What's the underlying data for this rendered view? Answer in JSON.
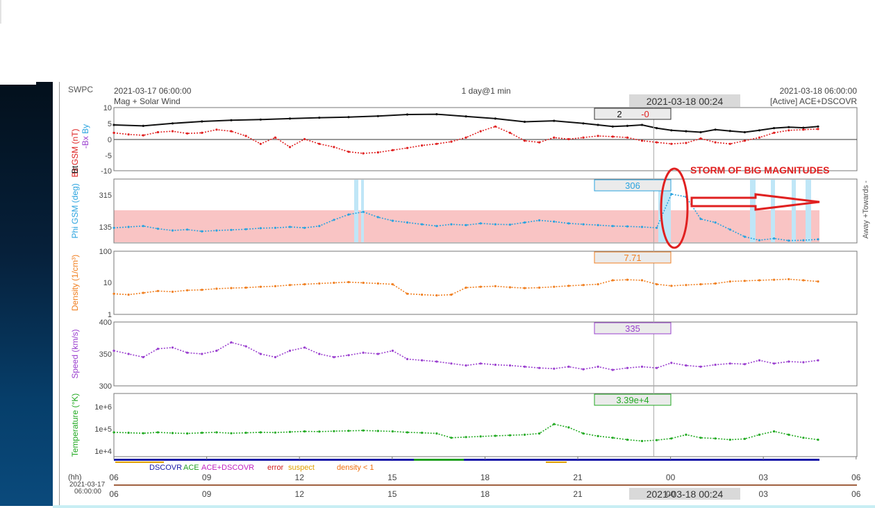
{
  "header": {
    "source": "SWPC",
    "start_time": "2021-03-17 06:00:00",
    "subtitle": "Mag + Solar Wind",
    "span": "1 day@1 min",
    "cursor_time": "2021-03-18 00:24",
    "end_time": "2021-03-18 06:00:00",
    "active_source": "[Active] ACE+DSCOVR"
  },
  "annotation": {
    "text": "STORM OF BIG MAGNITUDES",
    "color": "#e02020"
  },
  "footer": {
    "hh_label": "(hh)",
    "start_date": "2021-03-17",
    "start_clock": "06:00:00",
    "cursor_time": "2021-03-18 00:24",
    "legend": [
      {
        "label": "DSCOVR",
        "color": "#1a1aa8"
      },
      {
        "label": "ACE",
        "color": "#22a022"
      },
      {
        "label": "ACE+DSCOVR",
        "color": "#c020c0"
      },
      {
        "label": "error",
        "color": "#d02020"
      },
      {
        "label": "suspect",
        "color": "#e0a000"
      },
      {
        "label": "density < 1",
        "color": "#f07010"
      }
    ]
  },
  "chart_data": {
    "type": "scatter",
    "x_axis": {
      "start": "2021-03-17 06:00",
      "end": "2021-03-18 06:00",
      "tick_labels": [
        "06",
        "09",
        "12",
        "15",
        "18",
        "21",
        "00",
        "03",
        "06"
      ],
      "cursor": "2021-03-18 00:24"
    },
    "panels": [
      {
        "id": "mag",
        "ylabel_parts": [
          {
            "text": "Bz GSM (nT)",
            "color": "#dd2020"
          },
          {
            "text": "Bt",
            "color": "#111111"
          },
          {
            "text": "-Bx",
            "color": "#9a3fcf"
          },
          {
            "text": "By",
            "color": "#29a3df"
          }
        ],
        "ylim": [
          -10,
          10
        ],
        "yticks": [
          "10",
          "5",
          "0",
          "-5",
          "-10"
        ],
        "readout": [
          {
            "text": "2",
            "color": "#111111"
          },
          {
            "text": "-0",
            "color": "#e02020"
          }
        ],
        "series": [
          {
            "name": "Bt",
            "color": "#111111",
            "x_hours": [
              0,
              1,
              2,
              3,
              4,
              5,
              6,
              7,
              8,
              9,
              10,
              11,
              12,
              13,
              14,
              15,
              16,
              16.5,
              17,
              17.5,
              18,
              18.5,
              19,
              19.5,
              20,
              20.5,
              21,
              21.5,
              22,
              22.5,
              23,
              23.5,
              24
            ],
            "values": [
              4.5,
              4.2,
              5.0,
              5.6,
              6.0,
              6.2,
              6.5,
              6.8,
              7.0,
              7.3,
              7.8,
              7.9,
              7.2,
              6.5,
              5.5,
              5.8,
              5.0,
              4.5,
              4.0,
              4.2,
              4.5,
              3.5,
              2.8,
              2.5,
              2.2,
              3.0,
              2.6,
              2.2,
              2.8,
              3.5,
              3.8,
              3.6,
              4.0
            ]
          },
          {
            "name": "Bz",
            "color": "#e02020",
            "x_hours": [
              0,
              0.5,
              1,
              1.5,
              2,
              2.5,
              3,
              3.5,
              4,
              4.5,
              5,
              5.5,
              6,
              6.5,
              7,
              7.5,
              8,
              8.5,
              9,
              9.5,
              10,
              10.5,
              11,
              11.5,
              12,
              12.5,
              13,
              13.5,
              14,
              14.5,
              15,
              15.5,
              16,
              16.5,
              17,
              17.5,
              18,
              18.5,
              19,
              19.5,
              20,
              20.5,
              21,
              21.5,
              22,
              22.5,
              23,
              23.5,
              24
            ],
            "values": [
              2,
              1.5,
              1.2,
              2.2,
              2.5,
              1.8,
              2.0,
              3.0,
              2.5,
              1.0,
              -1.5,
              0.5,
              -2.5,
              0.0,
              -1.5,
              -2.5,
              -4.0,
              -4.5,
              -4.2,
              -3.5,
              -2.8,
              -2.0,
              -1.5,
              -0.8,
              0.5,
              2.5,
              4.0,
              2.0,
              -0.5,
              -1.0,
              0.5,
              0.0,
              0.5,
              1.0,
              0.8,
              0.5,
              -0.5,
              -1.0,
              -1.5,
              -1.2,
              0.2,
              -1.0,
              -1.5,
              -0.5,
              0.5,
              2.0,
              2.8,
              3.0,
              3.2
            ]
          }
        ]
      },
      {
        "id": "phi",
        "ylabel": "Phi GSM (deg)",
        "ylabel_color": "#29a3df",
        "right_label": "Away +Towards -",
        "ylim": [
          45,
          405
        ],
        "yticks": [
          "315",
          "135"
        ],
        "readout": [
          {
            "text": "306",
            "color": "#29a3df"
          }
        ],
        "series": [
          {
            "name": "Phi",
            "color": "#29a3df",
            "x_hours": [
              0,
              0.5,
              1,
              1.5,
              2,
              2.5,
              3,
              3.5,
              4,
              4.5,
              5,
              5.5,
              6,
              6.5,
              7,
              7.5,
              8,
              8.5,
              9,
              9.5,
              10,
              10.5,
              11,
              11.5,
              12,
              12.5,
              13,
              13.5,
              14,
              14.5,
              15,
              15.5,
              16,
              16.5,
              17,
              17.5,
              18,
              18.5,
              19,
              19.5,
              20,
              20.5,
              21,
              21.5,
              22,
              22.5,
              23,
              23.5,
              24
            ],
            "values": [
              130,
              135,
              140,
              125,
              115,
              120,
              110,
              115,
              118,
              122,
              128,
              130,
              135,
              130,
              140,
              175,
              205,
              220,
              190,
              170,
              160,
              150,
              140,
              150,
              145,
              155,
              150,
              148,
              160,
              172,
              165,
              155,
              150,
              145,
              140,
              138,
              135,
              130,
              320,
              305,
              180,
              160,
              120,
              80,
              60,
              70,
              58,
              60,
              65
            ]
          }
        ]
      },
      {
        "id": "density",
        "ylabel": "Density (1/cm³)",
        "ylabel_color": "#f07f20",
        "ylim": [
          1,
          100
        ],
        "yscale": "log",
        "yticks": [
          "100",
          "10",
          "1"
        ],
        "readout": [
          {
            "text": "7.71",
            "color": "#f07f20"
          }
        ],
        "series": [
          {
            "name": "Density",
            "color": "#f07f20",
            "x_hours": [
              0,
              0.5,
              1,
              1.5,
              2,
              2.5,
              3,
              3.5,
              4,
              4.5,
              5,
              5.5,
              6,
              6.5,
              7,
              7.5,
              8,
              8.5,
              9,
              9.5,
              10,
              10.5,
              11,
              11.5,
              12,
              12.5,
              13,
              13.5,
              14,
              14.5,
              15,
              15.5,
              16,
              16.5,
              17,
              17.5,
              18,
              18.5,
              19,
              19.5,
              20,
              20.5,
              21,
              21.5,
              22,
              22.5,
              23,
              23.5,
              24
            ],
            "values": [
              4.5,
              4.2,
              4.8,
              5.5,
              5.2,
              5.8,
              6.0,
              6.5,
              6.8,
              7.0,
              7.5,
              7.8,
              8.5,
              9.0,
              9.5,
              10,
              10.5,
              10,
              9.5,
              9.0,
              4.5,
              4.2,
              4.0,
              4.2,
              7.0,
              7.5,
              7.8,
              7.2,
              6.8,
              7.0,
              7.5,
              8.0,
              8.5,
              9.0,
              12,
              12.5,
              12,
              9.0,
              8.0,
              8.5,
              9.0,
              9.5,
              11,
              11.5,
              12,
              12.5,
              13,
              12,
              11
            ]
          }
        ]
      },
      {
        "id": "speed",
        "ylabel": "Speed (km/s)",
        "ylabel_color": "#9a3fcf",
        "ylim": [
          300,
          400
        ],
        "yticks": [
          "400",
          "350",
          "300"
        ],
        "readout": [
          {
            "text": "335",
            "color": "#9a3fcf"
          }
        ],
        "series": [
          {
            "name": "Speed",
            "color": "#9a3fcf",
            "x_hours": [
              0,
              0.5,
              1,
              1.5,
              2,
              2.5,
              3,
              3.5,
              4,
              4.5,
              5,
              5.5,
              6,
              6.5,
              7,
              7.5,
              8,
              8.5,
              9,
              9.5,
              10,
              10.5,
              11,
              11.5,
              12,
              12.5,
              13,
              13.5,
              14,
              14.5,
              15,
              15.5,
              16,
              16.5,
              17,
              17.5,
              18,
              18.5,
              19,
              19.5,
              20,
              20.5,
              21,
              21.5,
              22,
              22.5,
              23,
              23.5,
              24
            ],
            "values": [
              355,
              350,
              345,
              358,
              360,
              352,
              350,
              355,
              368,
              362,
              350,
              345,
              355,
              360,
              350,
              345,
              348,
              352,
              350,
              355,
              342,
              340,
              338,
              335,
              332,
              335,
              333,
              332,
              330,
              328,
              327,
              330,
              326,
              330,
              325,
              328,
              330,
              328,
              336,
              332,
              330,
              333,
              335,
              334,
              340,
              335,
              338,
              337,
              340
            ]
          }
        ]
      },
      {
        "id": "temperature",
        "ylabel": "Temperature (°K)",
        "ylabel_color": "#22aa22",
        "ylim": [
          5000,
          2000000
        ],
        "yscale": "log",
        "yticks": [
          "1e+6",
          "1e+5",
          "1e+4"
        ],
        "readout": [
          {
            "text": "3.39e+4",
            "color": "#22aa22"
          }
        ],
        "series": [
          {
            "name": "Temperature",
            "color": "#22aa22",
            "x_hours": [
              0,
              0.5,
              1,
              1.5,
              2,
              2.5,
              3,
              3.5,
              4,
              4.5,
              5,
              5.5,
              6,
              6.5,
              7,
              7.5,
              8,
              8.5,
              9,
              9.5,
              10,
              10.5,
              11,
              11.5,
              12,
              12.5,
              13,
              13.5,
              14,
              14.5,
              15,
              15.5,
              16,
              16.5,
              17,
              17.5,
              18,
              18.5,
              19,
              19.5,
              20,
              20.5,
              21,
              21.5,
              22,
              22.5,
              23,
              23.5,
              24
            ],
            "values": [
              50000,
              48000,
              46000,
              50000,
              47000,
              45000,
              48000,
              50000,
              46000,
              48000,
              50000,
              49000,
              52000,
              55000,
              54000,
              56000,
              58000,
              60000,
              57000,
              55000,
              50000,
              48000,
              45000,
              30000,
              32000,
              34000,
              36000,
              38000,
              40000,
              45000,
              110000,
              80000,
              45000,
              35000,
              30000,
              25000,
              22000,
              24000,
              28000,
              40000,
              30000,
              28000,
              25000,
              27000,
              40000,
              55000,
              40000,
              30000,
              25000
            ]
          }
        ]
      }
    ]
  }
}
